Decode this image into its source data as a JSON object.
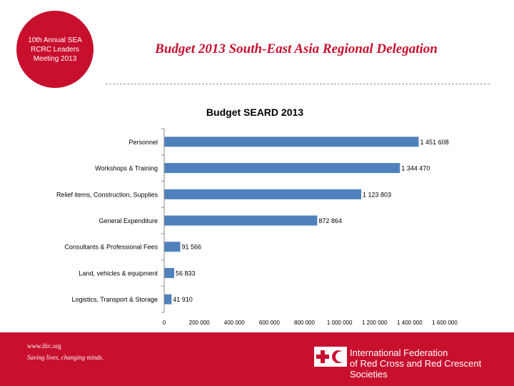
{
  "header": {
    "badge_lines": [
      "10th Annual SEA",
      "RCRC Leaders",
      "Meeting 2013"
    ],
    "title": "Budget 2013 South-East Asia Regional Delegation"
  },
  "footer": {
    "url": "www.ifrc.org",
    "tagline": "Saving lives, changing minds.",
    "org_lines": [
      "International Federation",
      "of Red Cross and Red Crescent Societies"
    ]
  },
  "colors": {
    "brand_red": "#c8102e",
    "bar": "#4f81bd"
  },
  "chart_data": {
    "type": "bar",
    "orientation": "horizontal",
    "title": "Budget SEARD 2013",
    "categories": [
      "Personnel",
      "Workshops & Training",
      "Relief items, Construction, Supplies",
      "General Expenditure",
      "Consultants & Professional Fees",
      "Land, vehicles & equipment",
      "Logistics, Transport & Storage"
    ],
    "values": [
      1451608,
      1344470,
      1123803,
      872864,
      91566,
      56833,
      41910
    ],
    "value_labels": [
      "1 451 608",
      "1 344 470",
      "1 123 803",
      "872 864",
      "91 566",
      "56 833",
      "41 910"
    ],
    "xlim": [
      0,
      1600000
    ],
    "xticks": [
      0,
      200000,
      400000,
      600000,
      800000,
      1000000,
      1200000,
      1400000,
      1600000
    ],
    "xtick_labels": [
      "0",
      "200 000",
      "400 000",
      "600 000",
      "800 000",
      "1 000 000",
      "1 200 000",
      "1 400 000",
      "1 600 000"
    ],
    "xlabel": "",
    "ylabel": "",
    "grid": false,
    "legend": "none"
  }
}
